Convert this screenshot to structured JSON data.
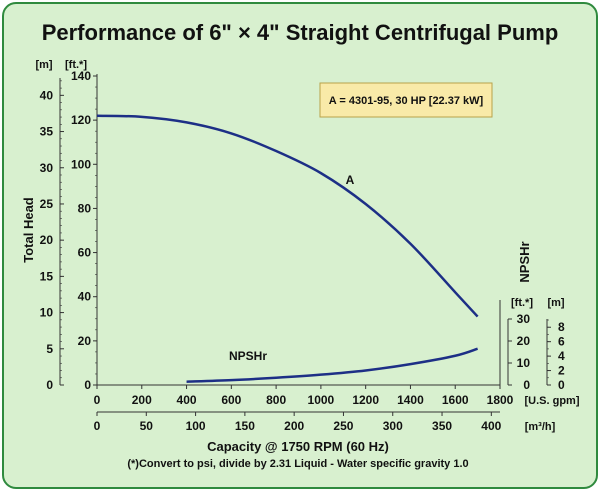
{
  "chart_data": {
    "type": "line",
    "title": "Performance of 6\" × 4\" Straight Centrifugal Pump",
    "xlabel": "Capacity @ 1750 RPM (60 Hz)",
    "ylabel": "Total Head",
    "note": "(*)Convert to psi, divide by 2.31     Liquid - Water specific gravity 1.0",
    "legend_box": "A = 4301-95, 30 HP [22.37 kW]",
    "x_primary": {
      "unit": "[U.S. gpm]",
      "range": [
        0,
        1800
      ],
      "ticks": [
        "0",
        "200",
        "400",
        "600",
        "800",
        "1000",
        "1200",
        "1400",
        "1600",
        "1800"
      ]
    },
    "x_secondary": {
      "unit": "[m³/h]",
      "range": [
        0,
        408.8
      ],
      "ticks": [
        "0",
        "50",
        "100",
        "150",
        "200",
        "250",
        "300",
        "350",
        "400"
      ]
    },
    "y_left_m": {
      "unit": "[m]",
      "range": [
        0,
        42.67
      ],
      "ticks": [
        "0",
        "5",
        "10",
        "15",
        "20",
        "25",
        "30",
        "35",
        "40"
      ]
    },
    "y_left_ft": {
      "unit": "[ft.*]",
      "range": [
        0,
        140
      ],
      "ticks": [
        "0",
        "20",
        "40",
        "60",
        "80",
        "100",
        "120",
        "140"
      ]
    },
    "y_right_npsh_ft": {
      "title": "NPSHr",
      "unit": "[ft.*]",
      "range": [
        0,
        30
      ],
      "ticks": [
        "0",
        "10",
        "20",
        "30"
      ]
    },
    "y_right_npsh_m": {
      "unit": "[m]",
      "range": [
        0,
        9.14
      ],
      "ticks": [
        "0",
        "2",
        "4",
        "6",
        "8"
      ]
    },
    "series": [
      {
        "name": "A",
        "axis": "head_ft",
        "x": [
          0,
          200,
          400,
          600,
          800,
          1000,
          1200,
          1400,
          1600,
          1700
        ],
        "y": [
          122,
          121.5,
          119,
          114,
          106,
          96,
          82,
          64,
          42,
          31
        ]
      },
      {
        "name": "NPSHr",
        "axis": "npsh_ft",
        "x": [
          400,
          600,
          800,
          1000,
          1200,
          1400,
          1600,
          1700
        ],
        "y": [
          1.5,
          2.2,
          3.3,
          4.7,
          6.6,
          9.5,
          13.3,
          16.5
        ]
      }
    ],
    "grid": false,
    "colors": {
      "background": "#d8f0cf",
      "border": "#2f8a3e",
      "curve": "#1d2f86",
      "legend_box": "#f9eaa8"
    }
  }
}
